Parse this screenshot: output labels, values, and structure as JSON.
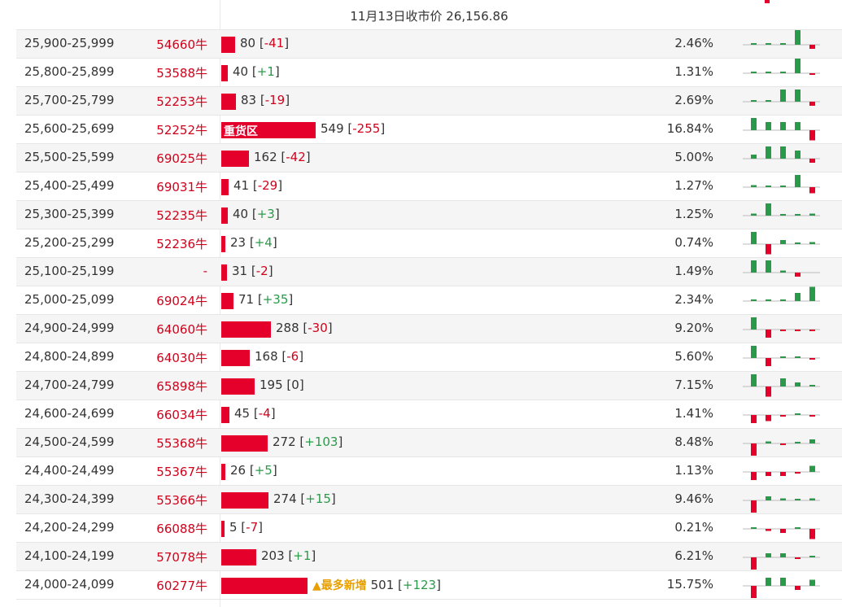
{
  "header": {
    "title": "11月13日收市价 26,156.86"
  },
  "colors": {
    "red": "#e4002b",
    "green": "#2a9a4a",
    "note": "#e8a000"
  },
  "rows": [
    {
      "range": "25,900-25,999",
      "code": "54660牛",
      "count": "80",
      "change": "-41",
      "pct": "2.46%",
      "bar": 80,
      "spark": [
        0,
        0,
        0,
        4,
        -1
      ]
    },
    {
      "range": "25,800-25,899",
      "code": "53588牛",
      "count": "40",
      "change": "+1",
      "pct": "1.31%",
      "bar": 40,
      "spark": [
        0,
        0,
        0,
        4,
        -0.3
      ]
    },
    {
      "range": "25,700-25,799",
      "code": "52253牛",
      "count": "83",
      "change": "-19",
      "pct": "2.69%",
      "bar": 83,
      "spark": [
        0,
        0,
        3,
        3,
        -1
      ]
    },
    {
      "range": "25,600-25,699",
      "code": "52252牛",
      "count": "549",
      "change": "-255",
      "pct": "16.84%",
      "bar": 549,
      "label": "重货区",
      "spark": [
        3,
        2,
        2,
        2,
        -2.5
      ]
    },
    {
      "range": "25,500-25,599",
      "code": "69025牛",
      "count": "162",
      "change": "-42",
      "pct": "5.00%",
      "bar": 162,
      "spark": [
        1,
        3,
        3,
        2,
        -1
      ]
    },
    {
      "range": "25,400-25,499",
      "code": "69031牛",
      "count": "41",
      "change": "-29",
      "pct": "1.27%",
      "bar": 41,
      "spark": [
        0.5,
        0.2,
        0.2,
        3,
        -1.5
      ]
    },
    {
      "range": "25,300-25,399",
      "code": "52235牛",
      "count": "40",
      "change": "+3",
      "pct": "1.25%",
      "bar": 40,
      "spark": [
        0.5,
        3,
        0.3,
        0.3,
        0.5
      ]
    },
    {
      "range": "25,200-25,299",
      "code": "52236牛",
      "count": "23",
      "change": "+4",
      "pct": "0.74%",
      "bar": 23,
      "spark": [
        3,
        -2.5,
        1,
        0.3,
        0.5
      ]
    },
    {
      "range": "25,100-25,199",
      "code": "-",
      "count": "31",
      "change": "-2",
      "pct": "1.49%",
      "bar": 31,
      "spark": [
        3,
        3,
        0.5,
        -1
      ],
      "spark_offset": [
        0,
        1,
        2,
        3
      ]
    },
    {
      "range": "25,000-25,099",
      "code": "69024牛",
      "count": "71",
      "change": "+35",
      "pct": "2.34%",
      "bar": 71,
      "spark": [
        0.3,
        0.3,
        0.3,
        2,
        3.5
      ]
    },
    {
      "range": "24,900-24,999",
      "code": "64060牛",
      "count": "288",
      "change": "-30",
      "pct": "9.20%",
      "bar": 288,
      "spark": [
        3,
        -2,
        -0.4,
        -0.4,
        -0.3
      ]
    },
    {
      "range": "24,800-24,899",
      "code": "64030牛",
      "count": "168",
      "change": "-6",
      "pct": "5.60%",
      "bar": 168,
      "spark": [
        3,
        -2,
        0.2,
        0.2,
        -0.3
      ]
    },
    {
      "range": "24,700-24,799",
      "code": "65898牛",
      "count": "195",
      "change": "0",
      "pct": "7.15%",
      "bar": 195,
      "spark": [
        3,
        -2.5,
        2,
        1,
        0
      ]
    },
    {
      "range": "24,600-24,699",
      "code": "66034牛",
      "count": "45",
      "change": "-4",
      "pct": "1.41%",
      "bar": 45,
      "spark": [
        -2,
        -1.5,
        -0.2,
        0.2,
        -0.3
      ]
    },
    {
      "range": "24,500-24,599",
      "code": "55368牛",
      "count": "272",
      "change": "+103",
      "pct": "8.48%",
      "bar": 272,
      "spark": [
        -3,
        0.5,
        -0.3,
        0.3,
        1
      ]
    },
    {
      "range": "24,400-24,499",
      "code": "55367牛",
      "count": "26",
      "change": "+5",
      "pct": "1.13%",
      "bar": 26,
      "spark": [
        -2,
        -1,
        -1,
        -0.2,
        1.5
      ]
    },
    {
      "range": "24,300-24,399",
      "code": "55366牛",
      "count": "274",
      "change": "+15",
      "pct": "9.46%",
      "bar": 274,
      "spark": [
        -3,
        1,
        0.5,
        0.3,
        0.5
      ]
    },
    {
      "range": "24,200-24,299",
      "code": "66088牛",
      "count": "5",
      "change": "-7",
      "pct": "0.21%",
      "bar": 5,
      "spark": [
        0.3,
        -0.5,
        -1,
        0.2,
        -2.5
      ]
    },
    {
      "range": "24,100-24,199",
      "code": "57078牛",
      "count": "203",
      "change": "+1",
      "pct": "6.21%",
      "bar": 203,
      "spark": [
        -3,
        1,
        1,
        -0.3,
        0.3
      ]
    },
    {
      "range": "24,000-24,099",
      "code": "60277牛",
      "count": "501",
      "change": "+123",
      "pct": "15.75%",
      "bar": 501,
      "note": "▲最多新增",
      "spark": [
        -3,
        2,
        2,
        -1,
        1.5
      ]
    }
  ]
}
